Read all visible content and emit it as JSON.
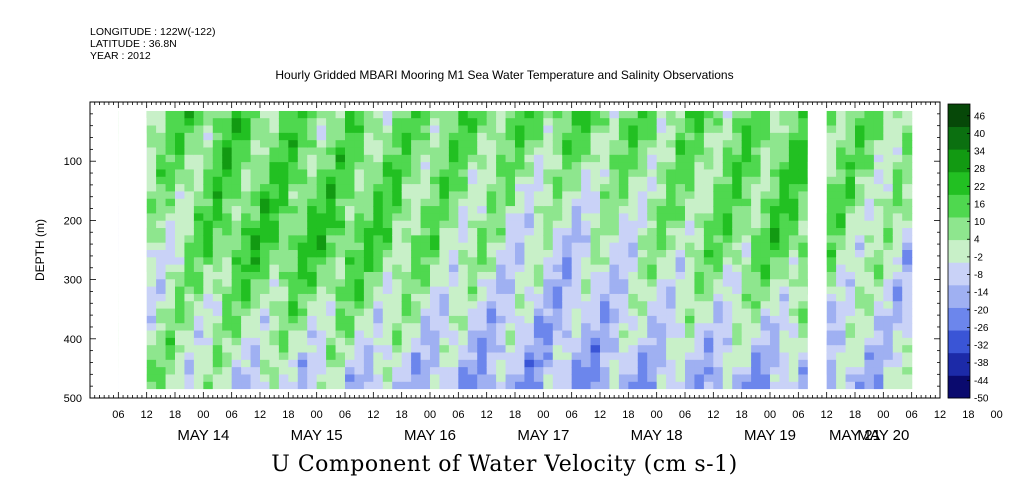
{
  "header": {
    "longitude": "LONGITUDE : 122W(-122)",
    "latitude": "LATITUDE : 36.8N",
    "year": "YEAR : 2012"
  },
  "chart_data": {
    "type": "heatmap",
    "title": "Hourly Gridded MBARI Mooring M1 Sea Water Temperature and Salinity Observations",
    "xlabel": "U Component of Water Velocity (cm s-1)",
    "ylabel": "DEPTH (m)",
    "ylim": [
      500,
      0
    ],
    "y_ticks": [
      100,
      200,
      300,
      400,
      500
    ],
    "x_hour_ticks": [
      "06",
      "12",
      "18",
      "00",
      "06",
      "12",
      "18",
      "00",
      "06",
      "12",
      "18",
      "00",
      "06",
      "12",
      "18",
      "00",
      "06",
      "12",
      "18",
      "00",
      "06",
      "12",
      "18",
      "00",
      "06",
      "12",
      "18",
      "00",
      "06",
      "12",
      "18",
      "00",
      "06",
      "12",
      "18",
      "00",
      "06",
      "12",
      "18",
      "00",
      "06",
      "12",
      "18",
      "00",
      "06"
    ],
    "x_date_labels": [
      "MAY 14",
      "MAY 15",
      "MAY 16",
      "MAY 17",
      "MAY 18",
      "MAY 19",
      "MAY 20",
      "MAY 21"
    ],
    "colorbar": {
      "labels": [
        "46",
        "40",
        "34",
        "28",
        "22",
        "16",
        "10",
        "4",
        "-2",
        "-8",
        "-14",
        "-20",
        "-26",
        "-32",
        "-38",
        "-44",
        "-50"
      ],
      "min": -50,
      "max": 50,
      "colors_low_to_high": [
        "#0a0a6e",
        "#1c2aa8",
        "#3a55d6",
        "#6c86ec",
        "#9fb0f2",
        "#c9d2f7",
        "#c8f0c8",
        "#8ee68e",
        "#4fd84f",
        "#22c022",
        "#129a12",
        "#0b7010",
        "#064808"
      ]
    },
    "time_range_hours": [
      0,
      168
    ],
    "depth_range_m": [
      15,
      485
    ],
    "missing": [
      {
        "t": [
          0,
          6
        ],
        "d": [
          15,
          500
        ]
      },
      {
        "t": [
          146,
          150
        ],
        "d": [
          15,
          500
        ]
      }
    ],
    "u_velocity_profile_summary": [
      {
        "day": "MAY 14",
        "surface": 10,
        "mid": -10,
        "deep": 12
      },
      {
        "day": "MAY 15",
        "surface": 14,
        "mid": 16,
        "deep": -6
      },
      {
        "day": "MAY 16",
        "surface": 8,
        "mid": 18,
        "deep": -8
      },
      {
        "day": "MAY 17",
        "surface": 12,
        "mid": 4,
        "deep": -14
      },
      {
        "day": "MAY 18",
        "surface": 14,
        "mid": -8,
        "deep": -16
      },
      {
        "day": "MAY 19",
        "surface": 10,
        "mid": 6,
        "deep": -12
      },
      {
        "day": "MAY 20",
        "surface": 12,
        "mid": 16,
        "deep": -18
      },
      {
        "day": "MAY 21",
        "surface": 10,
        "mid": -6,
        "deep": -8
      }
    ]
  }
}
